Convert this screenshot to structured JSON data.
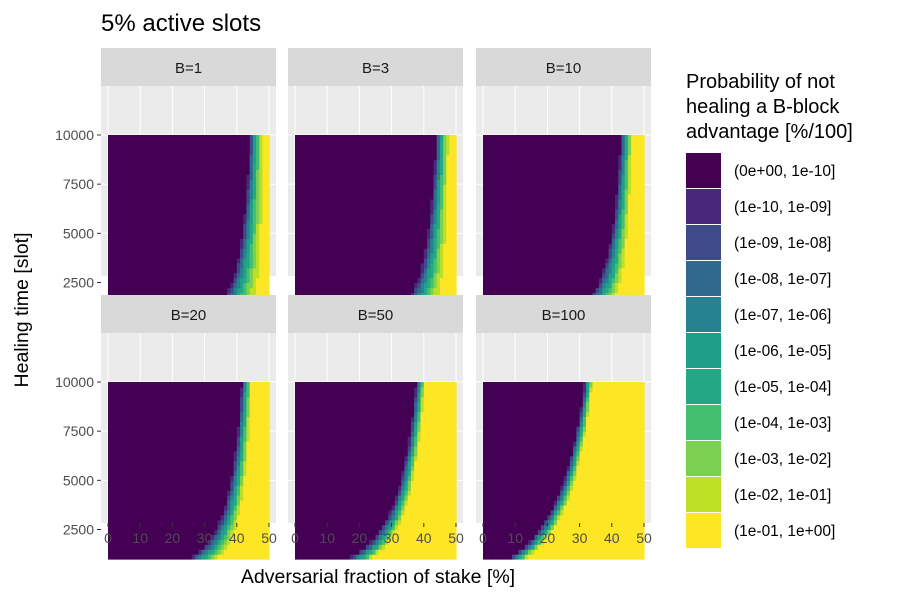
{
  "chart_data": {
    "type": "heatmap",
    "title": "5% active slots",
    "xlabel": "Adversarial fraction of stake [%]",
    "ylabel": "Healing time [slot]",
    "x_ticks": [
      0,
      10,
      20,
      30,
      40,
      50
    ],
    "y_ticks": [
      2500,
      5000,
      7500,
      10000
    ],
    "x_range": [
      0,
      50
    ],
    "y_range": [
      1000,
      10000
    ],
    "panels": [
      {
        "label": "B=1",
        "B": 1
      },
      {
        "label": "B=3",
        "B": 3
      },
      {
        "label": "B=10",
        "B": 10
      },
      {
        "label": "B=20",
        "B": 20
      },
      {
        "label": "B=50",
        "B": 50
      },
      {
        "label": "B=100",
        "B": 100
      }
    ],
    "legend": {
      "title_lines": [
        "Probability of not",
        "healing a B-block",
        "advantage [%/100]"
      ],
      "bins": [
        {
          "label": "(0e+00, 1e-10]",
          "color": "#440154"
        },
        {
          "label": "(1e-10, 1e-09]",
          "color": "#482878"
        },
        {
          "label": "(1e-09, 1e-08]",
          "color": "#3E4A89"
        },
        {
          "label": "(1e-08, 1e-07]",
          "color": "#31688E"
        },
        {
          "label": "(1e-07, 1e-06]",
          "color": "#26828E"
        },
        {
          "label": "(1e-06, 1e-05]",
          "color": "#1F9E89"
        },
        {
          "label": "(1e-05, 1e-04]",
          "color": "#22A884"
        },
        {
          "label": "(1e-04, 1e-03]",
          "color": "#44BF70"
        },
        {
          "label": "(1e-03, 1e-02]",
          "color": "#7AD151"
        },
        {
          "label": "(1e-02, 1e-01]",
          "color": "#BDDF26"
        },
        {
          "label": "(1e-01, 1e+00]",
          "color": "#FDE725"
        }
      ],
      "placement": "right"
    },
    "colors": {
      "panel_bg": "#EBEBEB",
      "strip_bg": "#D9D9D9",
      "grid": "#FFFFFF",
      "text": "#1A1A1A",
      "tick_text": "#4D4D4D"
    }
  }
}
